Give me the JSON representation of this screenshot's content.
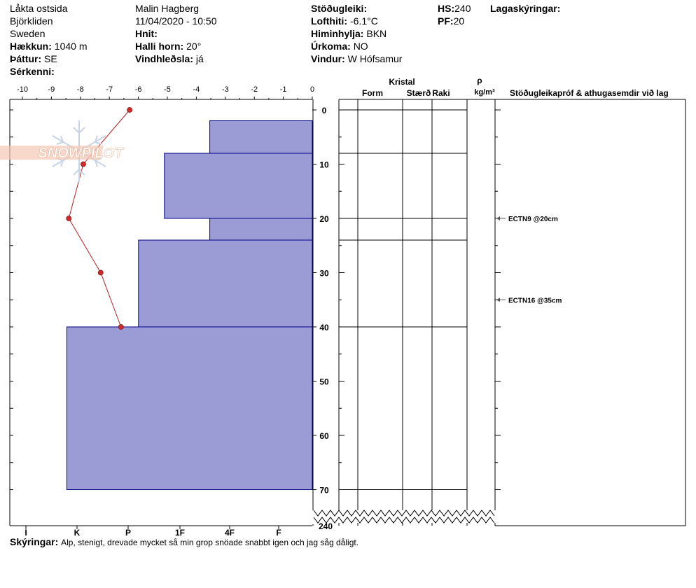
{
  "header": {
    "location": "Låkta ostsida",
    "area": "Björkliden",
    "country": "Sweden",
    "elevation_label": "Hækkun:",
    "elevation": "1040 m",
    "aspect_label": "Þáttur:",
    "aspect": "SE",
    "features_label": "Sérkenni:",
    "observer": "Malin Hagberg",
    "datetime": "11/04/2020 - 10:50",
    "coords_label": "Hnit:",
    "slope_label": "Halli horn:",
    "slope": "20°",
    "wind_loading_label": "Vindhleðsla:",
    "wind_loading": "já",
    "stability_label": "Stöðugleiki:",
    "air_temp_label": "Lofthiti:",
    "air_temp": "-6.1°C",
    "sky_label": "Himinhylja:",
    "sky": "BKN",
    "precip_label": "Úrkoma:",
    "precip": "NO",
    "wind_label": "Vindur:",
    "wind": "W Hófsamur",
    "hs_label": "HS:",
    "hs": "240",
    "pf_label": "PF:",
    "pf": "20",
    "layer_notes_label": "Lagaskýringar:"
  },
  "columns": {
    "crystal": "Kristal",
    "form": "Form",
    "size": "Stærð",
    "moisture": "Raki",
    "rho": "ρ",
    "density_unit": "kg/m³",
    "stability_tests": "Stöðugleikapróf & athugasemdir við lag"
  },
  "notes": {
    "label": "Skýringar:",
    "text": "Alp, stenigt, drevade mycket så min grop snöade snabbt igen och jag såg dåligt."
  },
  "colors": {
    "hardness_fill": "#9b9bd6",
    "hardness_stroke": "#00008b",
    "temperature": "#b22222",
    "temperature_point": "#d42a2a"
  },
  "icons": [
    "snowflake-icon",
    "snowpilot-logo"
  ],
  "logo_text": "SNOWPILOT",
  "chart_data": {
    "type": "snow-profile",
    "temperature_axis": {
      "ticks": [
        "-10",
        "-9",
        "-8",
        "-7",
        "-6",
        "-5",
        "-4",
        "-3",
        "-2",
        "-1",
        "0"
      ],
      "range": [
        -10,
        0
      ],
      "unit": "°C"
    },
    "depth_axis": {
      "ticks": [
        "0",
        "10",
        "20",
        "30",
        "40",
        "50",
        "60",
        "70"
      ],
      "range": [
        0,
        72
      ],
      "break_label": "240",
      "unit": "cm"
    },
    "hardness_axis": {
      "ticks": [
        "I",
        "K",
        "P",
        "1F",
        "4F",
        "F"
      ]
    },
    "hardness_layers": [
      {
        "top": 2,
        "bottom": 8,
        "hardness": 2.4
      },
      {
        "top": 8,
        "bottom": 20,
        "hardness": 3.3
      },
      {
        "top": 20,
        "bottom": 24,
        "hardness": 2.4
      },
      {
        "top": 24,
        "bottom": 40,
        "hardness": 3.8
      },
      {
        "top": 40,
        "bottom": 70,
        "hardness": 5.2
      }
    ],
    "temperature_profile": [
      {
        "depth": 0,
        "temp": -6.3
      },
      {
        "depth": 10,
        "temp": -7.9
      },
      {
        "depth": 20,
        "temp": -8.4
      },
      {
        "depth": 30,
        "temp": -7.3
      },
      {
        "depth": 40,
        "temp": -6.6
      }
    ],
    "layer_boundaries": [
      0,
      8,
      20,
      24,
      40,
      70
    ],
    "stability_tests": [
      {
        "depth": 20,
        "label": "ECTN9 @20cm"
      },
      {
        "depth": 35,
        "label": "ECTN16 @35cm"
      }
    ]
  }
}
